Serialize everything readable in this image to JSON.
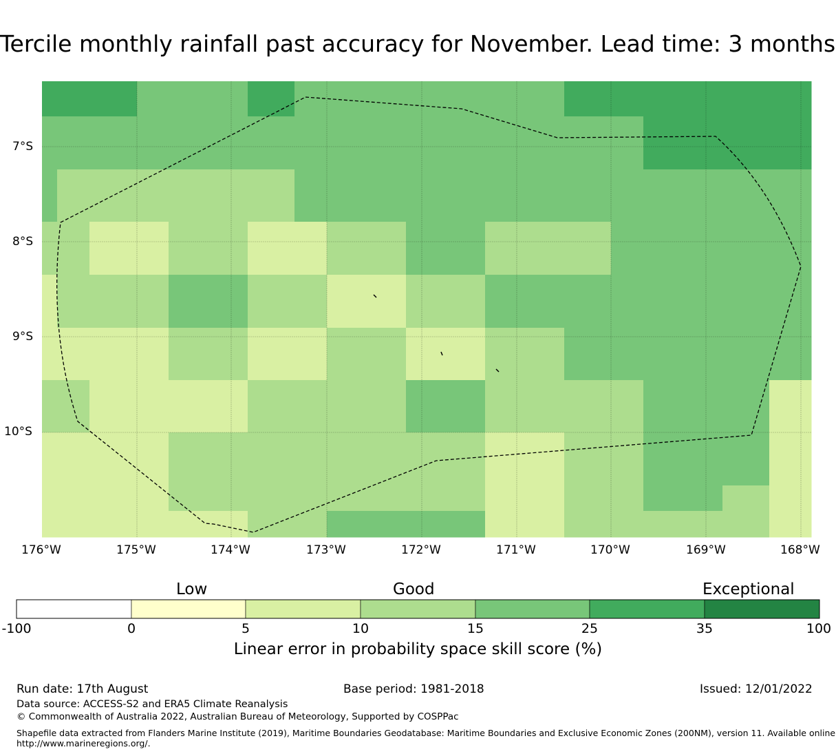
{
  "title": "Tercile monthly rainfall past accuracy for November. Lead time: 3 months",
  "map": {
    "lon_ticks": [
      "176°W",
      "175°W",
      "174°W",
      "173°W",
      "172°W",
      "171°W",
      "170°W",
      "169°W",
      "168°W"
    ],
    "lat_ticks": [
      "7°S",
      "8°S",
      "9°S",
      "10°S"
    ],
    "rows": [
      [
        5,
        5,
        5,
        4,
        4,
        4,
        5,
        4,
        4,
        4,
        4,
        4,
        4,
        4,
        5,
        5,
        5,
        5,
        5,
        5
      ],
      [
        4,
        4,
        4,
        4,
        4,
        4,
        4,
        4,
        4,
        4,
        4,
        4,
        4,
        4,
        4,
        4,
        5,
        5,
        5,
        5
      ],
      [
        4,
        3,
        3,
        3,
        3,
        3,
        3,
        4,
        4,
        4,
        4,
        4,
        4,
        4,
        4,
        4,
        4,
        4,
        4,
        4
      ],
      [
        3,
        3,
        2,
        2,
        3,
        3,
        2,
        2,
        3,
        3,
        4,
        4,
        3,
        3,
        3,
        4,
        4,
        4,
        4,
        4
      ],
      [
        2,
        3,
        3,
        3,
        4,
        4,
        3,
        3,
        2,
        2,
        3,
        3,
        4,
        4,
        4,
        4,
        4,
        4,
        4,
        4
      ],
      [
        2,
        2,
        2,
        2,
        3,
        3,
        2,
        2,
        3,
        3,
        2,
        2,
        3,
        3,
        4,
        4,
        4,
        4,
        4,
        4
      ],
      [
        3,
        3,
        2,
        2,
        2,
        2,
        3,
        3,
        3,
        3,
        4,
        4,
        3,
        3,
        3,
        3,
        4,
        4,
        4,
        2
      ],
      [
        2,
        2,
        2,
        2,
        3,
        3,
        3,
        3,
        3,
        3,
        3,
        3,
        2,
        2,
        3,
        3,
        4,
        4,
        4,
        2
      ],
      [
        2,
        2,
        2,
        2,
        3,
        3,
        3,
        3,
        3,
        3,
        3,
        3,
        2,
        2,
        3,
        3,
        4,
        4,
        3,
        2
      ],
      [
        2,
        2,
        2,
        2,
        2,
        2,
        3,
        3,
        4,
        4,
        4,
        4,
        2,
        2,
        3,
        3,
        3,
        3,
        3,
        2
      ]
    ]
  },
  "colorbar": {
    "words": [
      "Low",
      "Good",
      "Exceptional"
    ],
    "ticks": [
      "-100",
      "0",
      "5",
      "10",
      "15",
      "25",
      "35",
      "100"
    ],
    "colors": [
      "#ffffff",
      "#ffffcc",
      "#d9f0a3",
      "#addd8e",
      "#78c679",
      "#41ab5d",
      "#238443"
    ],
    "xlabel": "Linear error in probability space skill score (%)"
  },
  "footer": {
    "run_date": "Run date: 17th August",
    "base_period": "Base period: 1981-2018",
    "issued": "Issued: 12/01/2022",
    "data_source": "Data source: ACCESS-S2 and ERA5 Climate Reanalysis",
    "copyright": "© Commonwealth of Australia 2022, Australian Bureau of Meteorology, Supported by COSPPac",
    "shapefile_line1": "Shapefile data extracted from Flanders Marine Institute (2019), Maritime Boundaries Geodatabase: Maritime Boundaries and Exclusive Economic Zones (200NM), version 11. Available online at",
    "shapefile_line2": "http://www.marineregions.org/."
  }
}
